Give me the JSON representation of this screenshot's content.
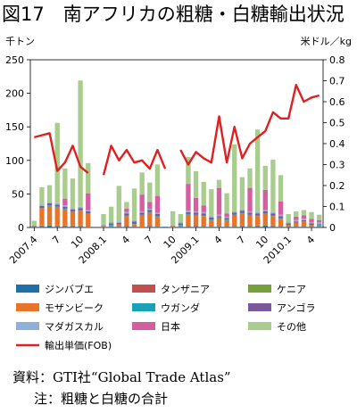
{
  "figure": {
    "title": "図17　南アフリカの粗糖・白糖輸出状況",
    "left_unit": "千トン",
    "right_unit": "米ドル／kg",
    "source": "資料：GTI社“Global Trade Atlas”",
    "note": "注：粗糖と白糖の合計"
  },
  "colors": {
    "ジンバブエ": "#1f6fa8",
    "タンザニア": "#c0504d",
    "ケニア": "#77a03c",
    "モザンビーク": "#e8742a",
    "ウガンダ": "#17a2b8",
    "アンゴラ": "#7a5a9a",
    "マダガスカル": "#8fb0d8",
    "日本": "#d45fa0",
    "その他": "#a9cd8e",
    "輸出単価(FOB)": "#e02020"
  },
  "chart_data": {
    "type": "bar",
    "subtype": "stacked bar with line on secondary axis",
    "categories": [
      "2007.4",
      "5",
      "6",
      "7",
      "8",
      "9",
      "10",
      "11",
      "12",
      "2008.1",
      "2",
      "3",
      "4",
      "5",
      "6",
      "7",
      "8",
      "9",
      "10",
      "11",
      "12",
      "2009.1",
      "2",
      "3",
      "4",
      "5",
      "6",
      "7",
      "8",
      "9",
      "10",
      "11",
      "12",
      "2010.1",
      "2",
      "3",
      "4",
      "5"
    ],
    "xtick_labels": [
      {
        "index": 0,
        "label": "2007.4"
      },
      {
        "index": 3,
        "label": "7"
      },
      {
        "index": 6,
        "label": "10"
      },
      {
        "index": 9,
        "label": "2008.1"
      },
      {
        "index": 12,
        "label": "4"
      },
      {
        "index": 15,
        "label": "7"
      },
      {
        "index": 18,
        "label": "10"
      },
      {
        "index": 21,
        "label": "2009.1"
      },
      {
        "index": 24,
        "label": "4"
      },
      {
        "index": 27,
        "label": "7"
      },
      {
        "index": 30,
        "label": "10"
      },
      {
        "index": 33,
        "label": "2010.1"
      },
      {
        "index": 36,
        "label": "4"
      }
    ],
    "y_left": {
      "min": 0,
      "max": 250,
      "ticks": [
        0,
        50,
        100,
        150,
        200,
        250
      ]
    },
    "y_right": {
      "min": 0,
      "max": 0.8,
      "ticks": [
        "0",
        "0.1",
        "0.2",
        "0.3",
        "0.4",
        "0.5",
        "0.6",
        "0.7",
        "0.8"
      ]
    },
    "series": [
      {
        "name": "ジンバブエ",
        "values": [
          1,
          1,
          2,
          1,
          1,
          1,
          1,
          0,
          0,
          0,
          1,
          1,
          1,
          1,
          0,
          1,
          1,
          1,
          0,
          1,
          1,
          1,
          1,
          1,
          1,
          1,
          1,
          1,
          1,
          1,
          2,
          1,
          1,
          1,
          1,
          1,
          1,
          1
        ]
      },
      {
        "name": "タンザニア",
        "values": [
          0,
          1,
          1,
          1,
          1,
          1,
          1,
          1,
          0,
          0,
          0,
          0,
          1,
          0,
          0,
          1,
          0,
          0,
          0,
          0,
          0,
          1,
          0,
          0,
          0,
          0,
          0,
          1,
          0,
          1,
          1,
          1,
          0,
          0,
          0,
          0,
          0,
          0
        ]
      },
      {
        "name": "ケニア",
        "values": [
          0,
          1,
          1,
          1,
          1,
          1,
          1,
          1,
          0,
          0,
          0,
          0,
          0,
          0,
          0,
          0,
          0,
          0,
          0,
          0,
          0,
          0,
          1,
          0,
          1,
          0,
          1,
          1,
          1,
          1,
          1,
          1,
          0,
          0,
          0,
          0,
          0,
          0
        ]
      },
      {
        "name": "モザンビーク",
        "values": [
          2,
          25,
          28,
          27,
          24,
          20,
          22,
          18,
          0,
          1,
          2,
          3,
          15,
          4,
          18,
          20,
          15,
          0,
          1,
          2,
          18,
          16,
          15,
          10,
          12,
          10,
          16,
          18,
          16,
          14,
          16,
          14,
          12,
          3,
          6,
          8,
          3,
          2
        ]
      },
      {
        "name": "ウガンダ",
        "values": [
          0,
          1,
          1,
          1,
          1,
          1,
          1,
          1,
          0,
          0,
          1,
          1,
          1,
          1,
          1,
          1,
          1,
          0,
          0,
          1,
          1,
          1,
          1,
          1,
          1,
          1,
          1,
          1,
          1,
          1,
          1,
          1,
          1,
          0,
          0,
          0,
          0,
          1
        ]
      },
      {
        "name": "アンゴラ",
        "values": [
          0,
          3,
          3,
          3,
          3,
          3,
          3,
          3,
          0,
          1,
          2,
          2,
          3,
          3,
          3,
          3,
          3,
          0,
          1,
          2,
          3,
          3,
          3,
          3,
          2,
          2,
          3,
          3,
          3,
          3,
          3,
          3,
          3,
          2,
          2,
          2,
          2,
          1
        ]
      },
      {
        "name": "マダガスカル",
        "values": [
          0,
          2,
          2,
          2,
          2,
          2,
          2,
          2,
          0,
          2,
          2,
          2,
          2,
          2,
          2,
          2,
          2,
          0,
          1,
          2,
          2,
          2,
          2,
          2,
          2,
          2,
          2,
          2,
          2,
          2,
          2,
          2,
          2,
          2,
          2,
          2,
          2,
          3
        ]
      },
      {
        "name": "日本",
        "values": [
          0,
          0,
          0,
          0,
          10,
          0,
          0,
          25,
          0,
          0,
          0,
          0,
          5,
          0,
          25,
          10,
          25,
          0,
          0,
          0,
          40,
          20,
          10,
          0,
          40,
          5,
          0,
          0,
          35,
          0,
          30,
          0,
          20,
          0,
          5,
          5,
          5,
          3
        ]
      },
      {
        "name": "その他",
        "values": [
          7,
          26,
          25,
          120,
          45,
          44,
          188,
          45,
          0,
          16,
          23,
          53,
          10,
          47,
          33,
          29,
          47,
          0,
          21,
          12,
          40,
          40,
          35,
          40,
          12,
          30,
          100,
          48,
          29,
          123,
          36,
          78,
          39,
          12,
          8,
          8,
          10,
          8
        ]
      }
    ],
    "line": {
      "name": "輸出単価(FOB)",
      "axis": "right",
      "values": [
        0.43,
        0.44,
        0.45,
        0.27,
        0.31,
        0.39,
        0.29,
        0.26,
        null,
        0.25,
        0.39,
        0.32,
        0.37,
        0.31,
        0.32,
        0.28,
        0.37,
        0.28,
        null,
        0.37,
        0.3,
        0.36,
        0.33,
        0.31,
        0.53,
        0.31,
        0.48,
        0.33,
        0.4,
        0.43,
        0.46,
        0.55,
        0.52,
        0.52,
        0.68,
        0.6,
        0.62,
        0.63
      ]
    },
    "legend": {
      "placement": "bottom",
      "items": [
        {
          "label": "ジンバブエ",
          "kind": "bar"
        },
        {
          "label": "タンザニア",
          "kind": "bar"
        },
        {
          "label": "ケニア",
          "kind": "bar"
        },
        {
          "label": "モザンビーク",
          "kind": "bar"
        },
        {
          "label": "ウガンダ",
          "kind": "bar"
        },
        {
          "label": "アンゴラ",
          "kind": "bar"
        },
        {
          "label": "マダガスカル",
          "kind": "bar"
        },
        {
          "label": "日本",
          "kind": "bar"
        },
        {
          "label": "その他",
          "kind": "bar"
        },
        {
          "label": "輸出単価(FOB)",
          "kind": "line"
        }
      ]
    },
    "grid": false
  }
}
